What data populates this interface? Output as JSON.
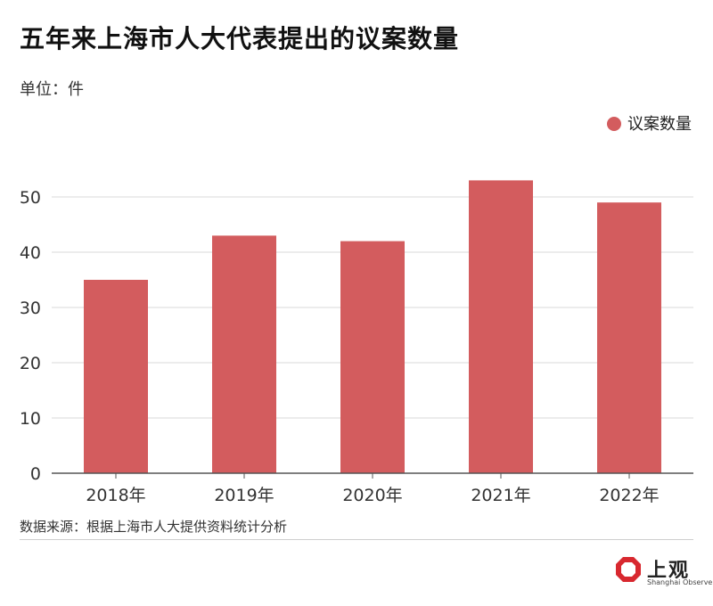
{
  "title": "五年来上海市人大代表提出的议案数量",
  "unit_label": "单位：件",
  "source": "数据来源：根据上海市人大提供资料统计分析",
  "logo": {
    "cn": "上观",
    "en": "Shanghai Observer"
  },
  "colors": {
    "bar": "#d35c5e",
    "grid": "#d9d9d9",
    "axis": "#555555",
    "logo_red": "#d8282f"
  },
  "chart_data": {
    "type": "bar",
    "categories": [
      "2018年",
      "2019年",
      "2020年",
      "2021年",
      "2022年"
    ],
    "series": [
      {
        "name": "议案数量",
        "values": [
          35,
          43,
          42,
          53,
          49
        ]
      }
    ],
    "y_ticks": [
      "0",
      "10",
      "20",
      "30",
      "40",
      "50"
    ],
    "ylim": [
      0,
      60
    ],
    "grid": true,
    "legend_position": "top-right"
  }
}
